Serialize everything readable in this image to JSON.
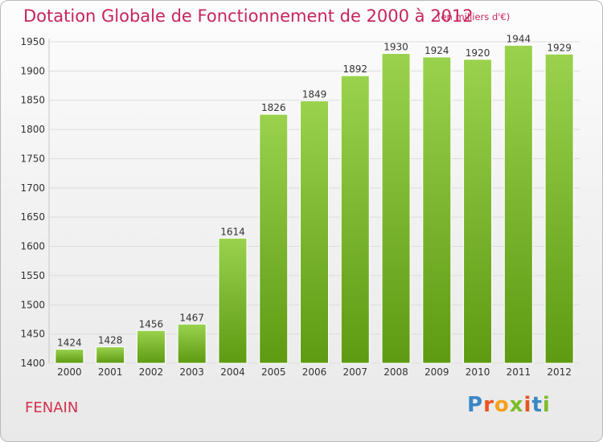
{
  "header": {
    "title": "Dotation Globale de Fonctionnement de 2000 à 2012",
    "unit": "(en milliers d'€)"
  },
  "footer": {
    "commune": "FENAIN",
    "logo": "Proxiti",
    "logo_colors": [
      "#3a87c6",
      "#e9531f",
      "#f4a01a",
      "#7dbb2b",
      "#e9531f",
      "#3a87c6",
      "#7dbb2b"
    ]
  },
  "colors": {
    "bar_top": "#9ad24e",
    "bar_bottom": "#5e9a12",
    "title": "#c8245a",
    "grid": "#dcdcdc",
    "axis_text": "#333333"
  },
  "chart_data": {
    "type": "bar",
    "categories": [
      "2000",
      "2001",
      "2002",
      "2003",
      "2004",
      "2005",
      "2006",
      "2007",
      "2008",
      "2009",
      "2010",
      "2011",
      "2012"
    ],
    "values": [
      1424,
      1428,
      1456,
      1467,
      1614,
      1826,
      1849,
      1892,
      1930,
      1924,
      1920,
      1944,
      1929
    ],
    "yticks": [
      1400,
      1450,
      1500,
      1550,
      1600,
      1650,
      1700,
      1750,
      1800,
      1850,
      1900,
      1950
    ],
    "ylim": [
      1400,
      1950
    ],
    "grid": true,
    "legend": "none"
  }
}
